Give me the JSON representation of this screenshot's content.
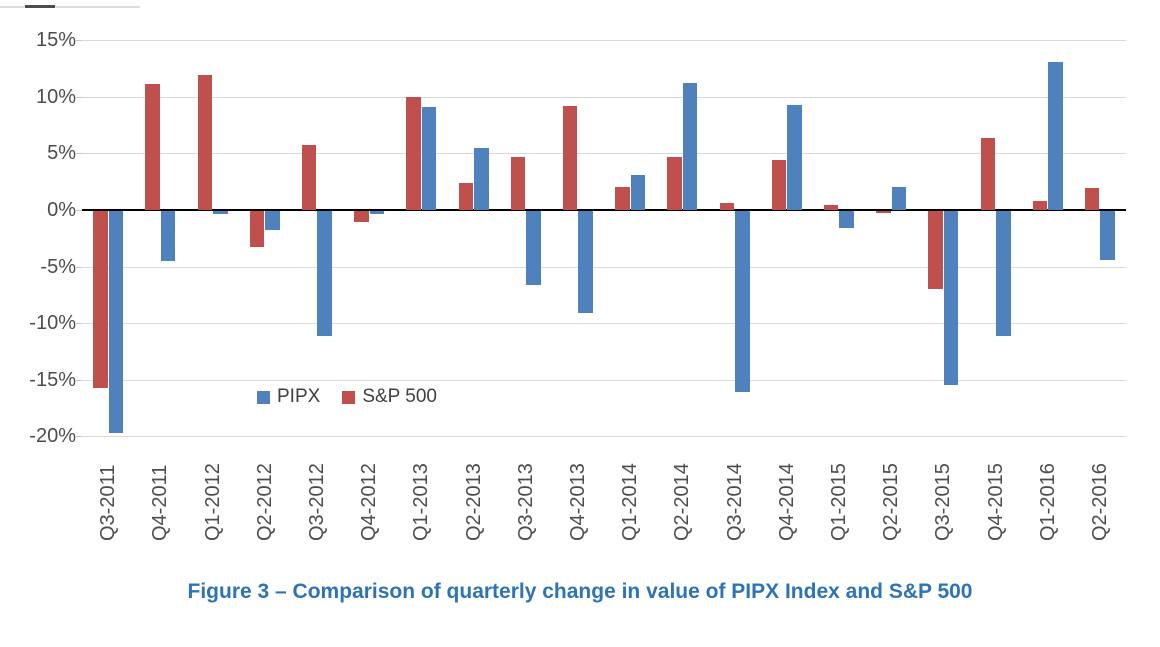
{
  "figure": {
    "caption": "Figure 3 – Comparison of quarterly change in value of PIPX Index and S&P 500"
  },
  "chart_data": {
    "type": "bar",
    "title": "",
    "xlabel": "",
    "ylabel": "",
    "unit": "%",
    "grid": true,
    "legend_position": "inside-plot-lower-left",
    "categories": [
      "Q3-2011",
      "Q4-2011",
      "Q1-2012",
      "Q2-2012",
      "Q3-2012",
      "Q4-2012",
      "Q1-2013",
      "Q2-2013",
      "Q3-2013",
      "Q4-2013",
      "Q1-2014",
      "Q2-2014",
      "Q3-2014",
      "Q4-2014",
      "Q1-2015",
      "Q2-2015",
      "Q3-2015",
      "Q4-2015",
      "Q1-2016",
      "Q2-2016"
    ],
    "series": [
      {
        "name": "PIPX",
        "color": "#4F81BD",
        "values": [
          -19.6,
          -4.4,
          -0.3,
          -1.7,
          -11.0,
          -0.3,
          9.1,
          5.5,
          -6.5,
          -9.0,
          3.1,
          11.2,
          -16.0,
          9.3,
          -1.5,
          2.0,
          -15.4,
          -11.0,
          13.1,
          -4.3
        ]
      },
      {
        "name": "S&P 500",
        "color": "#C0504D",
        "values": [
          -15.6,
          11.1,
          11.9,
          -3.2,
          5.7,
          -1.0,
          10.0,
          2.4,
          4.7,
          9.2,
          2.0,
          4.7,
          0.6,
          4.4,
          0.4,
          -0.2,
          -6.9,
          6.4,
          0.8,
          1.9
        ]
      }
    ],
    "series_draw_order": [
      "S&P 500",
      "PIPX"
    ],
    "y_axis": {
      "tick_labels": [
        "15%",
        "10%",
        "5%",
        "0%",
        "-5%",
        "-10%",
        "-15%",
        "-20%"
      ],
      "tick_values": [
        15,
        10,
        5,
        0,
        -5,
        -10,
        -15,
        -20
      ],
      "ylim": [
        -20,
        15
      ]
    }
  }
}
